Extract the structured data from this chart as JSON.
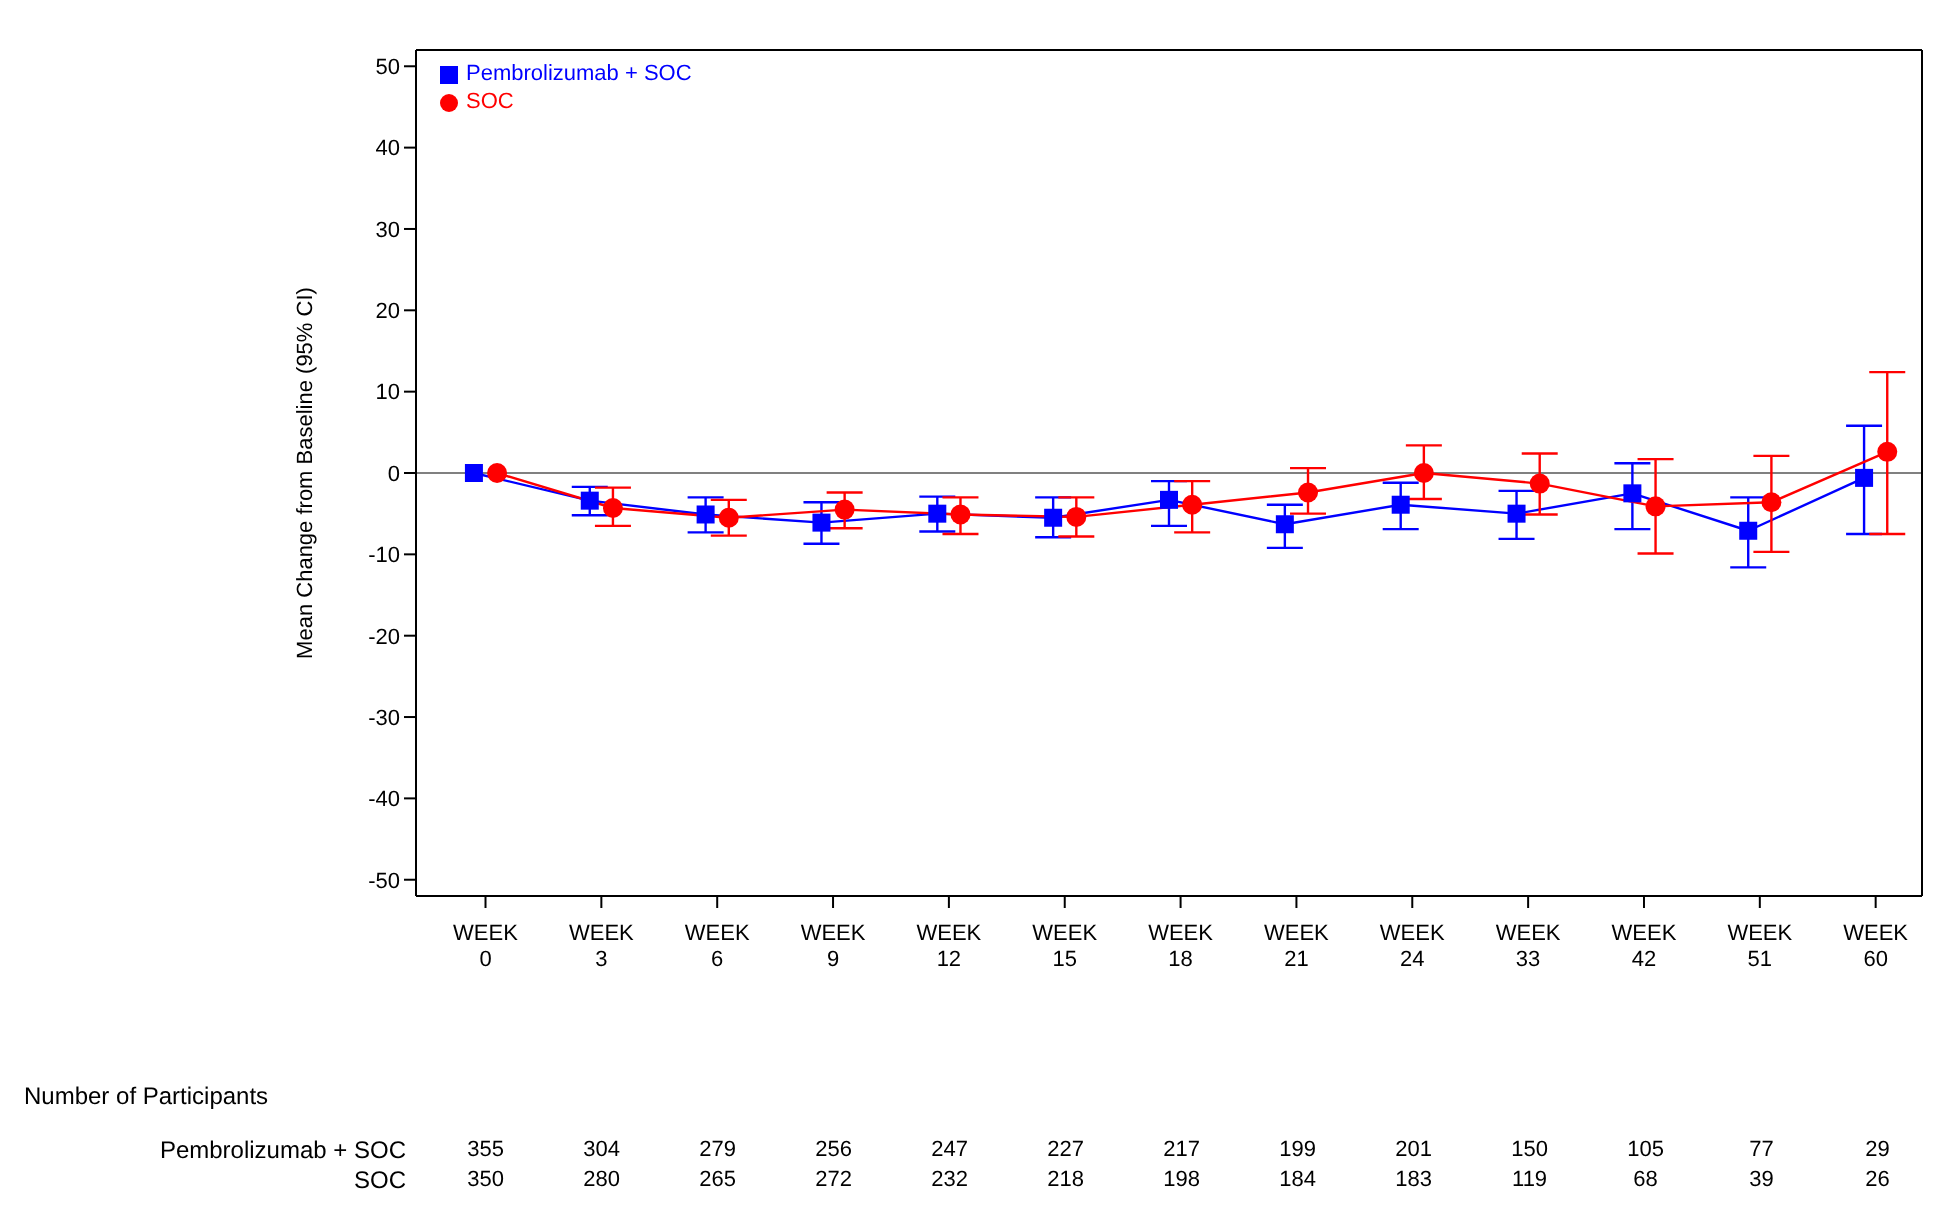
{
  "chart_data": {
    "type": "line",
    "ylabel": "Mean Change from Baseline (95% CI)",
    "categories": [
      "WEEK 0",
      "WEEK 3",
      "WEEK 6",
      "WEEK 9",
      "WEEK 12",
      "WEEK 15",
      "WEEK 18",
      "WEEK 21",
      "WEEK 24",
      "WEEK 33",
      "WEEK 42",
      "WEEK 51",
      "WEEK 60"
    ],
    "series": [
      {
        "name": "Pembrolizumab + SOC",
        "color": "#0000ff",
        "marker": "square",
        "values": [
          0,
          -3.4,
          -5.1,
          -6.1,
          -5.0,
          -5.5,
          -3.3,
          -6.3,
          -3.9,
          -5.0,
          -2.5,
          -7.1,
          -0.6
        ],
        "errors": [
          null,
          [
            -5.2,
            -1.7
          ],
          [
            -7.3,
            -3.0
          ],
          [
            -8.7,
            -3.6
          ],
          [
            -7.2,
            -2.9
          ],
          [
            -7.9,
            -3.0
          ],
          [
            -6.5,
            -1.0
          ],
          [
            -9.2,
            -3.9
          ],
          [
            -6.9,
            -1.2
          ],
          [
            -8.1,
            -2.2
          ],
          [
            -6.9,
            1.2
          ],
          [
            -11.6,
            -3.0
          ],
          [
            -7.5,
            5.8
          ]
        ]
      },
      {
        "name": "SOC",
        "color": "#ff0000",
        "marker": "circle",
        "values": [
          0,
          -4.3,
          -5.5,
          -4.5,
          -5.1,
          -5.4,
          -3.9,
          -2.4,
          0,
          -1.3,
          -4.1,
          -3.6,
          2.6
        ],
        "errors": [
          null,
          [
            -6.5,
            -1.8
          ],
          [
            -7.7,
            -3.3
          ],
          [
            -6.8,
            -2.4
          ],
          [
            -7.5,
            -3.0
          ],
          [
            -7.8,
            -3.0
          ],
          [
            -7.3,
            -1.0
          ],
          [
            -5.0,
            0.6
          ],
          [
            -3.2,
            3.4
          ],
          [
            -5.1,
            2.4
          ],
          [
            -9.9,
            1.7
          ],
          [
            -9.7,
            2.1
          ],
          [
            -7.5,
            12.4
          ]
        ]
      }
    ],
    "ylim": [
      -52,
      52
    ],
    "yticks": [
      -50,
      -40,
      -30,
      -20,
      -10,
      0,
      10,
      20,
      30,
      40,
      50
    ],
    "ref_lines": [
      {
        "axis": "y",
        "value": 0,
        "color": "#808080"
      }
    ],
    "legend": "top left",
    "grid": false,
    "line_style": "solid",
    "annotations": [
      "Number of Participants",
      "355",
      "304",
      "279",
      "256",
      "247",
      "227",
      "217",
      "199",
      "201",
      "150",
      "105",
      "77",
      "29",
      "350",
      "280",
      "265",
      "272",
      "232",
      "218",
      "198",
      "184",
      "183",
      "119",
      "68",
      "39",
      "26"
    ]
  }
}
